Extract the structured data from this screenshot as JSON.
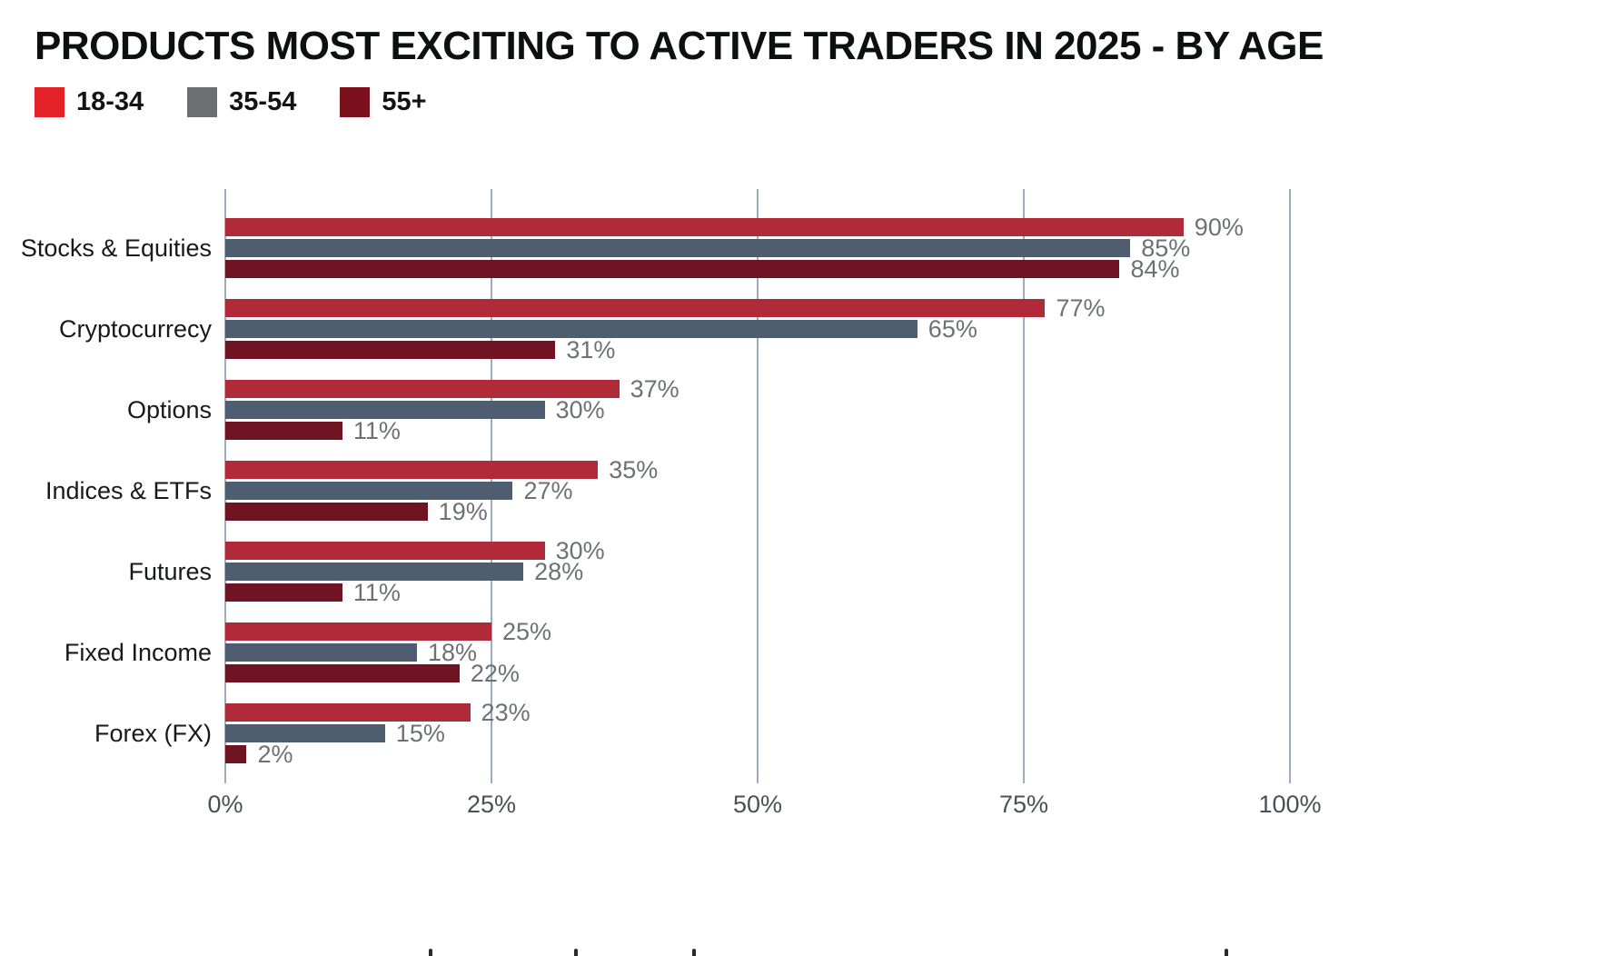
{
  "title": "PRODUCTS MOST EXCITING TO ACTIVE TRADERS IN 2025 - BY AGE",
  "chart_data": {
    "type": "bar",
    "orientation": "horizontal",
    "title": "PRODUCTS MOST EXCITING TO ACTIVE TRADERS IN 2025 - BY AGE",
    "categories": [
      "Stocks & Equities",
      "Cryptocurrecy",
      "Options",
      "Indices & ETFs",
      "Futures",
      "Fixed Income",
      "Forex (FX)"
    ],
    "series": [
      {
        "name": "18-34",
        "legend_color": "#e42328",
        "bar_color": "#b02a3a",
        "values": [
          90,
          77,
          37,
          35,
          30,
          25,
          23
        ]
      },
      {
        "name": "35-54",
        "legend_color": "#6d6e71",
        "bar_color": "#4e5d6f",
        "values": [
          85,
          65,
          30,
          27,
          28,
          18,
          15
        ]
      },
      {
        "name": "55+",
        "legend_color": "#7a111d",
        "bar_color": "#701322",
        "values": [
          84,
          31,
          11,
          19,
          11,
          22,
          2
        ]
      }
    ],
    "value_labels": [
      [
        "90%",
        "77%",
        "37%",
        "35%",
        "30%",
        "25%",
        "23%"
      ],
      [
        "85%",
        "65%",
        "30%",
        "27%",
        "28%",
        "18%",
        "15%"
      ],
      [
        "84%",
        "31%",
        "11%",
        "19%",
        "11%",
        "22%",
        "2%"
      ]
    ],
    "x_ticks": [
      "0%",
      "25%",
      "50%",
      "75%",
      "100%"
    ],
    "x_tick_values": [
      0,
      25,
      50,
      75,
      100
    ],
    "xlim": [
      0,
      100
    ],
    "grid": "vertical",
    "legend_position": "top-left",
    "gridline_color": "#9aadc0",
    "value_label_color": "#6d7176"
  }
}
